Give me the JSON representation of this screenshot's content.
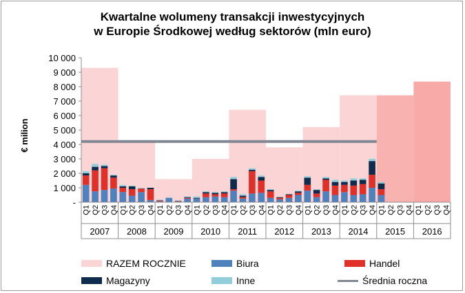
{
  "chart_data": {
    "type": "bar",
    "title_line1": "Kwartalne wolumeny transakcji inwestycyjnych",
    "title_line2": "w Europie Środkowej według sektorów (mln euro)",
    "ylabel": "€ milion",
    "ylim": [
      0,
      10000
    ],
    "yticks": [
      "-",
      "1 000",
      "2 000",
      "3 000",
      "4 000",
      "5 000",
      "6 000",
      "7 000",
      "8 000",
      "9 000",
      "10 000"
    ],
    "years": [
      "2007",
      "2008",
      "2009",
      "2010",
      "2011",
      "2012",
      "2013",
      "2014",
      "2015",
      "2016"
    ],
    "quarters": [
      "Q1",
      "Q2",
      "Q3",
      "Q4"
    ],
    "annual_totals": [
      9300,
      4200,
      1600,
      3000,
      6400,
      3800,
      5200,
      7400,
      7400,
      8350
    ],
    "annual_colors": [
      "#fbd5d5",
      "#fbd5d5",
      "#fbd5d5",
      "#fbd5d5",
      "#fbd5d5",
      "#fbd5d5",
      "#fbd5d5",
      "#fbd5d5",
      "#f8b3b0",
      "#f7aaa7"
    ],
    "average_line": 4200,
    "stack_colors": {
      "Biura": "#4f81bd",
      "Handel": "#e0302a",
      "Magazyny": "#0f2b4c",
      "Inne": "#92cddc"
    },
    "series": [
      {
        "name": "Biura",
        "values": [
          1200,
          750,
          850,
          950,
          700,
          450,
          700,
          150,
          50,
          300,
          60,
          250,
          250,
          350,
          400,
          350,
          800,
          250,
          600,
          650,
          300,
          200,
          300,
          500,
          800,
          350,
          750,
          500,
          700,
          500,
          550,
          1000,
          500,
          0,
          0,
          0,
          0,
          0,
          0,
          0
        ]
      },
      {
        "name": "Handel",
        "values": [
          650,
          1450,
          1500,
          750,
          300,
          450,
          250,
          750,
          50,
          0,
          30,
          50,
          0,
          250,
          150,
          250,
          100,
          100,
          1550,
          850,
          450,
          100,
          200,
          150,
          400,
          250,
          800,
          650,
          500,
          650,
          700,
          900,
          400,
          0,
          0,
          0,
          0,
          0,
          0,
          0
        ]
      },
      {
        "name": "Magazyny",
        "values": [
          150,
          250,
          150,
          150,
          100,
          200,
          0,
          100,
          30,
          0,
          10,
          50,
          50,
          100,
          100,
          100,
          700,
          100,
          100,
          250,
          100,
          50,
          50,
          100,
          500,
          250,
          100,
          250,
          200,
          350,
          300,
          950,
          400,
          0,
          0,
          0,
          0,
          0,
          0,
          0
        ]
      },
      {
        "name": "Inne",
        "values": [
          150,
          200,
          100,
          50,
          100,
          50,
          50,
          0,
          50,
          30,
          40,
          50,
          100,
          50,
          50,
          50,
          150,
          100,
          100,
          100,
          50,
          0,
          0,
          50,
          100,
          50,
          100,
          150,
          100,
          150,
          100,
          150,
          100,
          0,
          0,
          0,
          0,
          0,
          0,
          0
        ]
      }
    ],
    "legend": {
      "annual": "RAZEM ROCZNIE",
      "biura": "Biura",
      "handel": "Handel",
      "magazyny": "Magazyny",
      "inne": "Inne",
      "average": "Średnia roczna"
    },
    "colors": {
      "average_line": "#808792",
      "axis": "#8c8c8c"
    }
  }
}
